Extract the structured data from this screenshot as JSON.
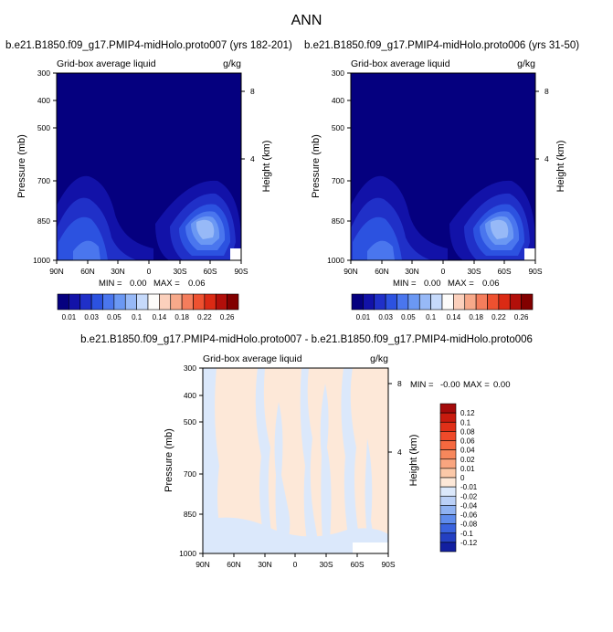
{
  "figure": {
    "title": "ANN"
  },
  "chart_data": [
    {
      "type": "heatmap",
      "title": "b.e21.B1850.f09_g17.PMIP4-midHolo.proto007 (yrs 182-201)",
      "left_label": "Grid-box average liquid",
      "right_label": "g/kg",
      "ylabel": "Pressure (mb)",
      "y2label": "Height (km)",
      "x_ticks": [
        "90N",
        "60N",
        "30N",
        "0",
        "30S",
        "60S",
        "90S"
      ],
      "y_ticks": [
        "300",
        "400",
        "500",
        "700",
        "850",
        "1000"
      ],
      "y2_ticks": [
        "8",
        "4"
      ],
      "stats": {
        "min_label": "MIN =",
        "min": "0.00",
        "max_label": "MAX =",
        "max": "0.06"
      },
      "colorbar": [
        "0.01",
        "0.03",
        "0.05",
        "0.1",
        "0.14",
        "0.18",
        "0.22",
        "0.26"
      ],
      "colorbar_colors": [
        "#05007f",
        "#1212a8",
        "#2030c8",
        "#2c52e0",
        "#4a76ee",
        "#6b98f3",
        "#97b9f7",
        "#c6dafb",
        "#fdfcfa",
        "#fbd0bc",
        "#f7a98a",
        "#f47d5c",
        "#ee5130",
        "#db2a14",
        "#b20f0a",
        "#820000"
      ]
    },
    {
      "type": "heatmap",
      "title": "b.e21.B1850.f09_g17.PMIP4-midHolo.proto006 (yrs 31-50)",
      "left_label": "Grid-box average liquid",
      "right_label": "g/kg",
      "ylabel": "Pressure (mb)",
      "y2label": "Height (km)",
      "x_ticks": [
        "90N",
        "60N",
        "30N",
        "0",
        "30S",
        "60S",
        "90S"
      ],
      "y_ticks": [
        "300",
        "400",
        "500",
        "700",
        "850",
        "1000"
      ],
      "y2_ticks": [
        "8",
        "4"
      ],
      "stats": {
        "min_label": "MIN =",
        "min": "0.00",
        "max_label": "MAX =",
        "max": "0.06"
      },
      "colorbar": [
        "0.01",
        "0.03",
        "0.05",
        "0.1",
        "0.14",
        "0.18",
        "0.22",
        "0.26"
      ],
      "colorbar_colors": [
        "#05007f",
        "#1212a8",
        "#2030c8",
        "#2c52e0",
        "#4a76ee",
        "#6b98f3",
        "#97b9f7",
        "#c6dafb",
        "#fdfcfa",
        "#fbd0bc",
        "#f7a98a",
        "#f47d5c",
        "#ee5130",
        "#db2a14",
        "#b20f0a",
        "#820000"
      ]
    },
    {
      "type": "heatmap",
      "title": "b.e21.B1850.f09_g17.PMIP4-midHolo.proto007 - b.e21.B1850.f09_g17.PMIP4-midHolo.proto006",
      "left_label": "Grid-box average liquid",
      "right_label": "g/kg",
      "ylabel": "Pressure (mb)",
      "y2label": "Height (km)",
      "x_ticks": [
        "90N",
        "60N",
        "30N",
        "0",
        "30S",
        "60S",
        "90S"
      ],
      "y_ticks": [
        "300",
        "400",
        "500",
        "700",
        "850",
        "1000"
      ],
      "y2_ticks": [
        "8",
        "4"
      ],
      "stats": {
        "min_label": "MIN =",
        "min": "-0.00",
        "max_label": "MAX =",
        "max": "0.00"
      },
      "colorbar": [
        "0.12",
        "0.1",
        "0.08",
        "0.06",
        "0.04",
        "0.02",
        "0.01",
        "0",
        "-0.01",
        "-0.02",
        "-0.04",
        "-0.06",
        "-0.08",
        "-0.1",
        "-0.12"
      ],
      "colorbar_colors": [
        "#a40a0a",
        "#c81b0e",
        "#e03018",
        "#ef4a2a",
        "#f5683f",
        "#f7875c",
        "#f9a57f",
        "#fbc8a8",
        "#fde8d8",
        "#dbe8fb",
        "#bad0f7",
        "#8fb2f2",
        "#5f8cec",
        "#3a63de",
        "#2440c2",
        "#121fa0"
      ]
    }
  ]
}
